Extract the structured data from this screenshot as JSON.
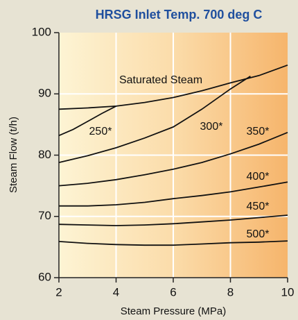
{
  "chart_data": {
    "type": "line",
    "title": "HRSG Inlet Temp. 700 deg C",
    "x_label": "Steam Pressure (MPa)",
    "y_label": "Steam Flow (t/h)",
    "xlim": [
      2,
      10
    ],
    "ylim": [
      60,
      100
    ],
    "xticks": [
      2,
      4,
      6,
      8,
      10
    ],
    "yticks": [
      60,
      70,
      80,
      90,
      100
    ],
    "grid": true,
    "color": "#111111",
    "series": [
      {
        "name": "Saturated Steam",
        "x": [
          2,
          3,
          4,
          5,
          6,
          7,
          8,
          9,
          10
        ],
        "values": [
          87.5,
          87.7,
          88.0,
          88.6,
          89.4,
          90.5,
          91.8,
          93.0,
          94.7
        ]
      },
      {
        "name": "250*",
        "x": [
          2,
          2.5,
          3,
          3.5,
          4
        ],
        "values": [
          83.2,
          84.2,
          85.5,
          86.8,
          88.0
        ]
      },
      {
        "name": "300*",
        "x": [
          2,
          3,
          4,
          5,
          6,
          7,
          8,
          8.7
        ],
        "values": [
          78.8,
          79.9,
          81.2,
          82.8,
          84.6,
          87.5,
          90.8,
          92.9
        ]
      },
      {
        "name": "350*",
        "x": [
          2,
          3,
          4,
          5,
          6,
          7,
          8,
          9,
          10
        ],
        "values": [
          75.0,
          75.4,
          76.0,
          76.8,
          77.7,
          78.8,
          80.2,
          81.8,
          83.7
        ]
      },
      {
        "name": "400*",
        "x": [
          2,
          3,
          4,
          5,
          6,
          7,
          8,
          9,
          10
        ],
        "values": [
          71.7,
          71.7,
          71.9,
          72.3,
          72.9,
          73.4,
          74.0,
          74.8,
          75.6
        ]
      },
      {
        "name": "450*",
        "x": [
          2,
          3,
          4,
          5,
          6,
          7,
          8,
          9,
          10
        ],
        "values": [
          68.7,
          68.6,
          68.5,
          68.6,
          68.8,
          69.1,
          69.4,
          69.8,
          70.2
        ]
      },
      {
        "name": "500*",
        "x": [
          2,
          3,
          4,
          5,
          6,
          7,
          8,
          9,
          10
        ],
        "values": [
          65.9,
          65.6,
          65.4,
          65.3,
          65.3,
          65.5,
          65.7,
          65.8,
          66.0
        ]
      }
    ]
  }
}
